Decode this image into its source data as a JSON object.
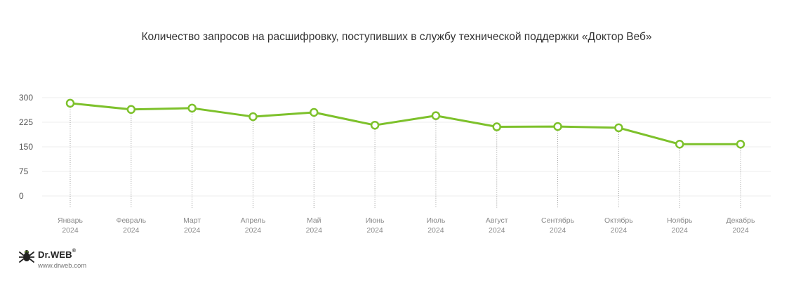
{
  "chart_data": {
    "type": "line",
    "title": "Количество запросов на расшифровку, поступивших в службу технической поддержки «Доктор Веб»",
    "categories": [
      [
        "Январь",
        "2024"
      ],
      [
        "Февраль",
        "2024"
      ],
      [
        "Март",
        "2024"
      ],
      [
        "Апрель",
        "2024"
      ],
      [
        "Май",
        "2024"
      ],
      [
        "Июнь",
        "2024"
      ],
      [
        "Июль",
        "2024"
      ],
      [
        "Август",
        "2024"
      ],
      [
        "Сентябрь",
        "2024"
      ],
      [
        "Октябрь",
        "2024"
      ],
      [
        "Ноябрь",
        "2024"
      ],
      [
        "Декабрь",
        "2024"
      ]
    ],
    "values": [
      283,
      264,
      268,
      242,
      255,
      216,
      245,
      211,
      212,
      208,
      158,
      158
    ],
    "yticks": [
      "300",
      "225",
      "150",
      "75",
      "0"
    ],
    "ylim": [
      0,
      300
    ],
    "grid": true,
    "colors": {
      "line": "#7dc12b",
      "marker_fill": "#ffffff",
      "grid": "#ececec",
      "vline": "#9a9a9a"
    }
  },
  "branding": {
    "name": "Dr.WEB",
    "registered": "®",
    "site": "www.drweb.com",
    "icon": "spider-logo-icon"
  }
}
